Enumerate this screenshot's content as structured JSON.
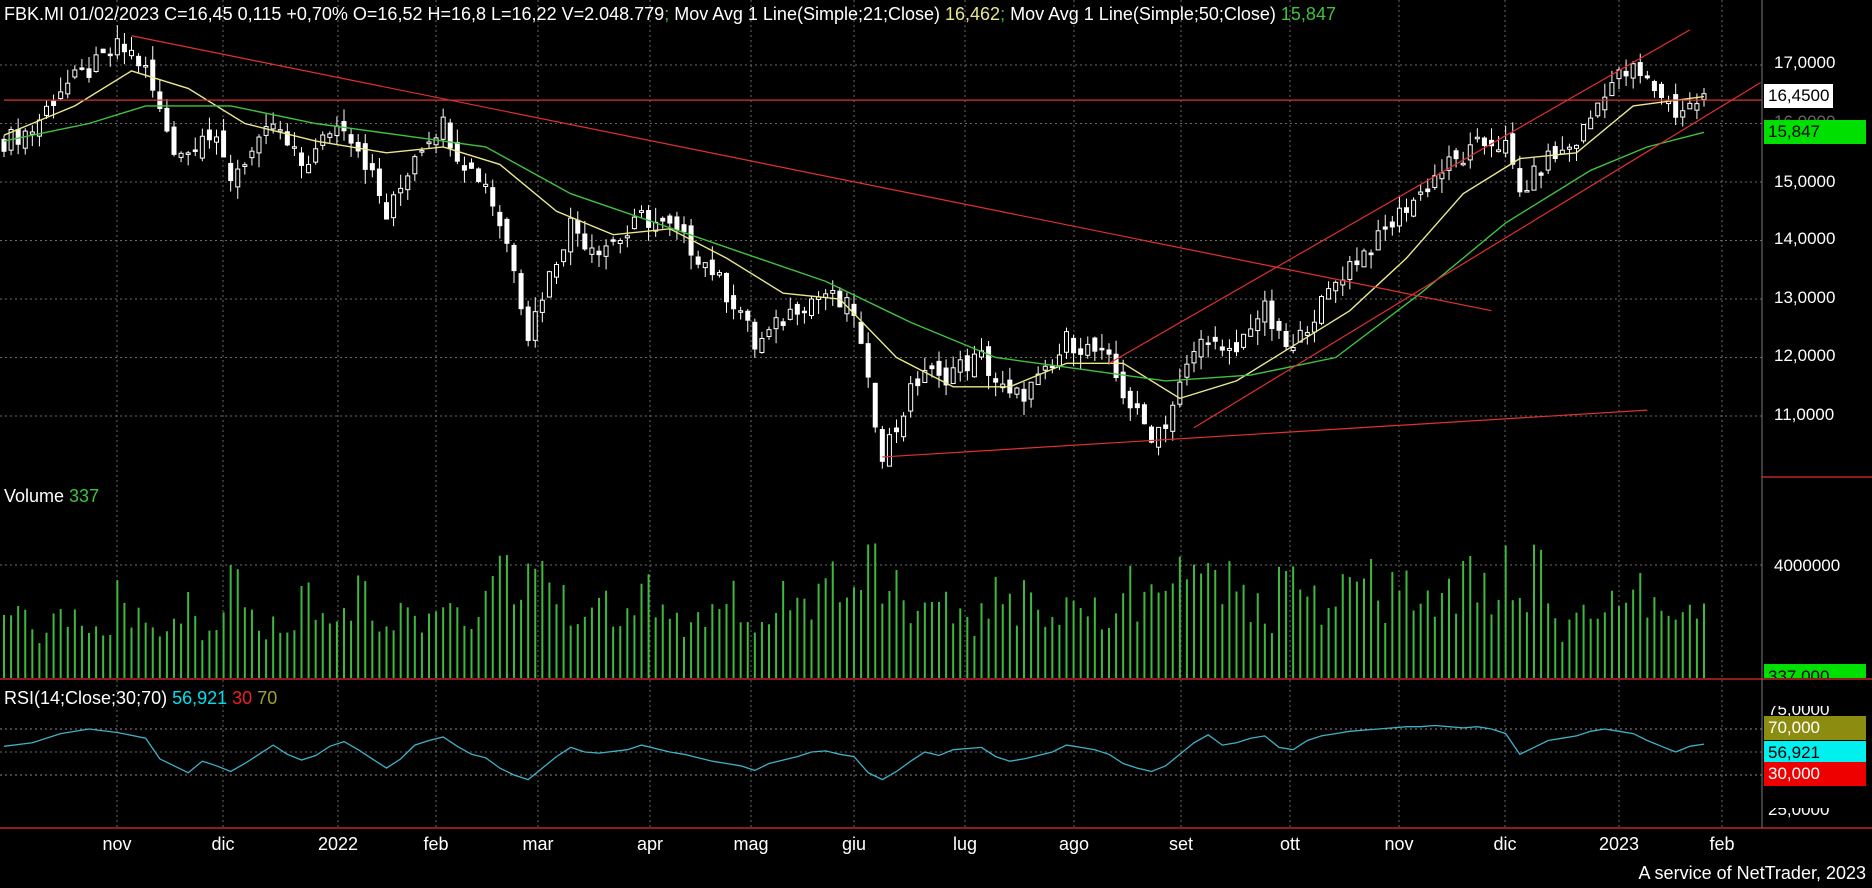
{
  "header": {
    "price": "FBK.MI 01/02/2023 C=16,45 0,115 +0,70% O=16,52 H=16,8 L=16,22 V=2.048.779",
    "sep1": ";",
    "ma21_label": " Mov Avg 1 Line(Simple;21;Close)",
    "ma21_value": " 16,462",
    "sep2": ";",
    "ma50_label": " Mov Avg 1 Line(Simple;50;Close)",
    "ma50_value": " 15,847"
  },
  "volume_header": {
    "label": "Volume",
    "value": " 337"
  },
  "rsi_header": {
    "label": "RSI(14;Close;30;70)",
    "value": " 56,921",
    "low": " 30",
    "high": " 70"
  },
  "price_tags": {
    "last": "16,4500",
    "ma50": "15,847"
  },
  "volume_tag": "337,000",
  "rsi_tags": {
    "high": "70,000",
    "value": "56,921",
    "low": "30,000",
    "bottom": "25,0000",
    "top": "75,0000"
  },
  "credit": "A service of NetTrader, 2023",
  "colors": {
    "bg": "#000000",
    "candle": "#ffffff",
    "ma21": "#e8e88a",
    "ma50": "#3fc23f",
    "trend": "#e03030",
    "volume": "#3fb83f",
    "rsi": "#3fb0c8",
    "grid": "#6a6a6a",
    "tag_green": "#00e000",
    "tag_cyan": "#00f0f0",
    "tag_olive": "#8c8c10",
    "tag_red": "#ee0000"
  },
  "chart_data": {
    "type": "line",
    "price_axis": {
      "ticks": [
        "17,0000",
        "16,0000",
        "15,0000",
        "14,0000",
        "13,0000",
        "12,0000",
        "11,0000"
      ],
      "ylim": [
        10.2,
        17.5
      ]
    },
    "volume_axis": {
      "ticks": [
        "4000000"
      ]
    },
    "x_labels": [
      "nov",
      "dic",
      "2022",
      "feb",
      "mar",
      "apr",
      "mag",
      "giu",
      "lug",
      "ago",
      "set",
      "ott",
      "nov",
      "dic",
      "2023",
      "feb"
    ],
    "close_series": [
      [
        0,
        15.7
      ],
      [
        2,
        15.9
      ],
      [
        4,
        16.6
      ],
      [
        6,
        16.9
      ],
      [
        8,
        17.3
      ],
      [
        9,
        17.2
      ],
      [
        10,
        16.9
      ],
      [
        11,
        16.2
      ],
      [
        12,
        15.6
      ],
      [
        13,
        15.5
      ],
      [
        14,
        15.9
      ],
      [
        15,
        15.6
      ],
      [
        16,
        15.1
      ],
      [
        17,
        15.4
      ],
      [
        18,
        15.6
      ],
      [
        19,
        16.0
      ],
      [
        20,
        15.6
      ],
      [
        21,
        15.3
      ],
      [
        22,
        15.5
      ],
      [
        23,
        15.9
      ],
      [
        24,
        16.0
      ],
      [
        25,
        15.6
      ],
      [
        26,
        15.1
      ],
      [
        27,
        14.4
      ],
      [
        28,
        14.9
      ],
      [
        29,
        15.5
      ],
      [
        30,
        15.8
      ],
      [
        31,
        16.0
      ],
      [
        32,
        15.5
      ],
      [
        33,
        15.2
      ],
      [
        34,
        15.0
      ],
      [
        35,
        14.3
      ],
      [
        36,
        13.6
      ],
      [
        37,
        12.4
      ],
      [
        38,
        13.1
      ],
      [
        40,
        14.3
      ],
      [
        41,
        14.0
      ],
      [
        42,
        13.9
      ],
      [
        44,
        14.1
      ],
      [
        45,
        14.4
      ],
      [
        47,
        14.2
      ],
      [
        48,
        14.0
      ],
      [
        50,
        13.5
      ],
      [
        51,
        13.1
      ],
      [
        52,
        12.8
      ],
      [
        53,
        12.2
      ],
      [
        54,
        12.4
      ],
      [
        56,
        12.9
      ],
      [
        57,
        13.0
      ],
      [
        58,
        13.1
      ],
      [
        59,
        12.9
      ],
      [
        60,
        12.8
      ],
      [
        61,
        11.5
      ],
      [
        62,
        10.4
      ],
      [
        63,
        10.8
      ],
      [
        64,
        11.4
      ],
      [
        65,
        11.8
      ],
      [
        66,
        11.6
      ],
      [
        67,
        11.8
      ],
      [
        69,
        12.0
      ],
      [
        70,
        11.6
      ],
      [
        71,
        11.3
      ],
      [
        72,
        11.4
      ],
      [
        73,
        11.6
      ],
      [
        74,
        11.8
      ],
      [
        75,
        12.3
      ],
      [
        76,
        12.2
      ],
      [
        77,
        12.1
      ],
      [
        78,
        11.9
      ],
      [
        79,
        11.4
      ],
      [
        80,
        11.0
      ],
      [
        81,
        10.7
      ],
      [
        82,
        10.9
      ],
      [
        83,
        11.5
      ],
      [
        84,
        12.1
      ],
      [
        85,
        12.4
      ],
      [
        86,
        12.0
      ],
      [
        87,
        12.1
      ],
      [
        88,
        12.6
      ],
      [
        89,
        12.8
      ],
      [
        90,
        12.3
      ],
      [
        91,
        12.1
      ],
      [
        92,
        12.6
      ],
      [
        93,
        12.9
      ],
      [
        94,
        13.3
      ],
      [
        95,
        13.6
      ],
      [
        96,
        13.8
      ],
      [
        97,
        14.0
      ],
      [
        98,
        14.3
      ],
      [
        99,
        14.6
      ],
      [
        100,
        14.8
      ],
      [
        101,
        15.1
      ],
      [
        102,
        15.3
      ],
      [
        103,
        15.4
      ],
      [
        104,
        15.6
      ],
      [
        105,
        15.7
      ],
      [
        106,
        15.6
      ],
      [
        107,
        14.8
      ],
      [
        108,
        15.1
      ],
      [
        109,
        15.4
      ],
      [
        110,
        15.5
      ],
      [
        111,
        15.7
      ],
      [
        112,
        16.1
      ],
      [
        113,
        16.6
      ],
      [
        114,
        16.8
      ],
      [
        115,
        16.9
      ],
      [
        116,
        16.7
      ],
      [
        117,
        16.5
      ],
      [
        118,
        16.2
      ],
      [
        119,
        16.3
      ],
      [
        120,
        16.45
      ]
    ],
    "ma21_series": [
      [
        0,
        15.8
      ],
      [
        5,
        16.3
      ],
      [
        9,
        16.9
      ],
      [
        13,
        16.6
      ],
      [
        17,
        16.0
      ],
      [
        22,
        15.7
      ],
      [
        27,
        15.5
      ],
      [
        31,
        15.6
      ],
      [
        35,
        15.3
      ],
      [
        39,
        14.5
      ],
      [
        43,
        14.1
      ],
      [
        47,
        14.2
      ],
      [
        51,
        13.7
      ],
      [
        55,
        13.1
      ],
      [
        59,
        13.0
      ],
      [
        63,
        12.0
      ],
      [
        67,
        11.5
      ],
      [
        71,
        11.5
      ],
      [
        75,
        11.9
      ],
      [
        79,
        11.9
      ],
      [
        83,
        11.3
      ],
      [
        87,
        11.6
      ],
      [
        91,
        12.2
      ],
      [
        95,
        12.8
      ],
      [
        99,
        13.7
      ],
      [
        103,
        14.8
      ],
      [
        107,
        15.4
      ],
      [
        111,
        15.5
      ],
      [
        115,
        16.3
      ],
      [
        120,
        16.46
      ]
    ],
    "ma50_series": [
      [
        0,
        15.7
      ],
      [
        6,
        16.0
      ],
      [
        10,
        16.3
      ],
      [
        16,
        16.3
      ],
      [
        22,
        16.0
      ],
      [
        28,
        15.8
      ],
      [
        34,
        15.6
      ],
      [
        40,
        14.8
      ],
      [
        46,
        14.3
      ],
      [
        52,
        13.8
      ],
      [
        58,
        13.3
      ],
      [
        64,
        12.6
      ],
      [
        70,
        12.0
      ],
      [
        76,
        11.8
      ],
      [
        82,
        11.6
      ],
      [
        88,
        11.7
      ],
      [
        94,
        12.0
      ],
      [
        100,
        13.1
      ],
      [
        106,
        14.3
      ],
      [
        112,
        15.2
      ],
      [
        116,
        15.6
      ],
      [
        120,
        15.85
      ]
    ],
    "trendlines": [
      {
        "from": [
          9,
          17.5
        ],
        "to": [
          105,
          12.8
        ]
      },
      {
        "from": [
          62,
          10.3
        ],
        "to": [
          116,
          11.1
        ]
      },
      {
        "from": [
          78,
          11.9
        ],
        "to": [
          119,
          17.6
        ]
      },
      {
        "from": [
          84,
          10.8
        ],
        "to": [
          124,
          16.7
        ]
      },
      {
        "from": [
          0,
          16.4
        ],
        "to": [
          124,
          16.4
        ]
      }
    ],
    "volume_series": [
      1.9,
      2.1,
      1.6,
      1.8,
      2.4,
      2.2,
      1.5,
      1.7,
      2.9,
      2.0,
      1.6,
      1.4,
      2.2,
      2.7,
      1.8,
      1.9,
      3.9,
      2.3,
      1.6,
      2.0,
      1.8,
      2.8,
      2.1,
      1.7,
      2.6,
      3.0,
      1.9,
      1.7,
      2.5,
      1.8,
      2.4,
      3.1,
      2.0,
      2.2,
      2.9,
      4.0,
      2.6,
      3.7,
      4.2,
      3.2,
      2.1,
      2.4,
      2.8,
      1.9,
      2.3,
      3.4,
      2.5,
      2.0,
      1.8,
      2.2,
      2.6,
      3.1,
      2.0,
      1.8,
      2.4,
      2.9,
      2.3,
      2.7,
      3.3,
      2.5,
      3.6,
      4.4,
      3.5,
      3.0,
      2.2,
      2.4,
      3.4,
      2.1,
      1.8,
      2.7,
      3.1,
      2.4,
      3.3,
      2.2,
      2.0,
      3.2,
      2.6,
      2.3,
      2.1,
      3.6,
      2.5,
      2.8,
      3.8,
      3.4,
      3.2,
      4.0,
      3.3,
      2.6,
      2.4,
      2.1,
      3.5,
      3.2,
      2.8,
      2.3,
      3.0,
      3.4,
      3.6,
      2.5,
      3.8,
      3.2,
      2.9,
      2.4,
      3.0,
      4.8,
      3.1,
      2.6,
      3.7,
      2.4,
      3.9,
      2.4,
      1.7,
      2.2,
      1.9,
      2.8,
      2.6,
      3.1,
      2.3,
      2.0,
      2.4,
      2.1,
      2.6
    ],
    "rsi_series": [
      [
        0,
        55
      ],
      [
        2,
        58
      ],
      [
        4,
        66
      ],
      [
        6,
        70
      ],
      [
        8,
        67
      ],
      [
        10,
        62
      ],
      [
        11,
        44
      ],
      [
        12,
        38
      ],
      [
        13,
        32
      ],
      [
        14,
        42
      ],
      [
        15,
        38
      ],
      [
        16,
        33
      ],
      [
        17,
        40
      ],
      [
        18,
        48
      ],
      [
        19,
        56
      ],
      [
        20,
        48
      ],
      [
        21,
        43
      ],
      [
        22,
        47
      ],
      [
        23,
        55
      ],
      [
        24,
        59
      ],
      [
        25,
        52
      ],
      [
        26,
        44
      ],
      [
        27,
        36
      ],
      [
        28,
        44
      ],
      [
        29,
        56
      ],
      [
        30,
        60
      ],
      [
        31,
        63
      ],
      [
        32,
        55
      ],
      [
        33,
        48
      ],
      [
        34,
        45
      ],
      [
        35,
        36
      ],
      [
        36,
        30
      ],
      [
        37,
        26
      ],
      [
        38,
        36
      ],
      [
        39,
        46
      ],
      [
        40,
        54
      ],
      [
        41,
        50
      ],
      [
        42,
        49
      ],
      [
        44,
        52
      ],
      [
        45,
        56
      ],
      [
        47,
        50
      ],
      [
        48,
        48
      ],
      [
        50,
        42
      ],
      [
        51,
        40
      ],
      [
        52,
        38
      ],
      [
        53,
        34
      ],
      [
        54,
        40
      ],
      [
        56,
        46
      ],
      [
        57,
        50
      ],
      [
        58,
        51
      ],
      [
        59,
        48
      ],
      [
        60,
        46
      ],
      [
        61,
        32
      ],
      [
        62,
        26
      ],
      [
        63,
        33
      ],
      [
        64,
        42
      ],
      [
        65,
        50
      ],
      [
        66,
        47
      ],
      [
        67,
        52
      ],
      [
        69,
        54
      ],
      [
        70,
        46
      ],
      [
        71,
        42
      ],
      [
        72,
        44
      ],
      [
        73,
        47
      ],
      [
        74,
        50
      ],
      [
        75,
        56
      ],
      [
        76,
        54
      ],
      [
        77,
        52
      ],
      [
        78,
        48
      ],
      [
        79,
        40
      ],
      [
        80,
        36
      ],
      [
        81,
        33
      ],
      [
        82,
        38
      ],
      [
        83,
        48
      ],
      [
        84,
        58
      ],
      [
        85,
        65
      ],
      [
        86,
        56
      ],
      [
        87,
        58
      ],
      [
        88,
        62
      ],
      [
        89,
        64
      ],
      [
        90,
        54
      ],
      [
        91,
        52
      ],
      [
        92,
        60
      ],
      [
        93,
        64
      ],
      [
        94,
        66
      ],
      [
        95,
        68
      ],
      [
        96,
        69
      ],
      [
        97,
        70
      ],
      [
        98,
        71
      ],
      [
        99,
        72
      ],
      [
        100,
        72
      ],
      [
        101,
        73
      ],
      [
        102,
        72
      ],
      [
        103,
        71
      ],
      [
        104,
        72
      ],
      [
        105,
        70
      ],
      [
        106,
        66
      ],
      [
        107,
        48
      ],
      [
        108,
        54
      ],
      [
        109,
        60
      ],
      [
        110,
        62
      ],
      [
        111,
        64
      ],
      [
        112,
        68
      ],
      [
        113,
        70
      ],
      [
        114,
        68
      ],
      [
        115,
        66
      ],
      [
        116,
        60
      ],
      [
        117,
        55
      ],
      [
        118,
        50
      ],
      [
        119,
        55
      ],
      [
        120,
        56.9
      ]
    ],
    "rsi_levels": {
      "low": 30,
      "high": 70
    }
  }
}
